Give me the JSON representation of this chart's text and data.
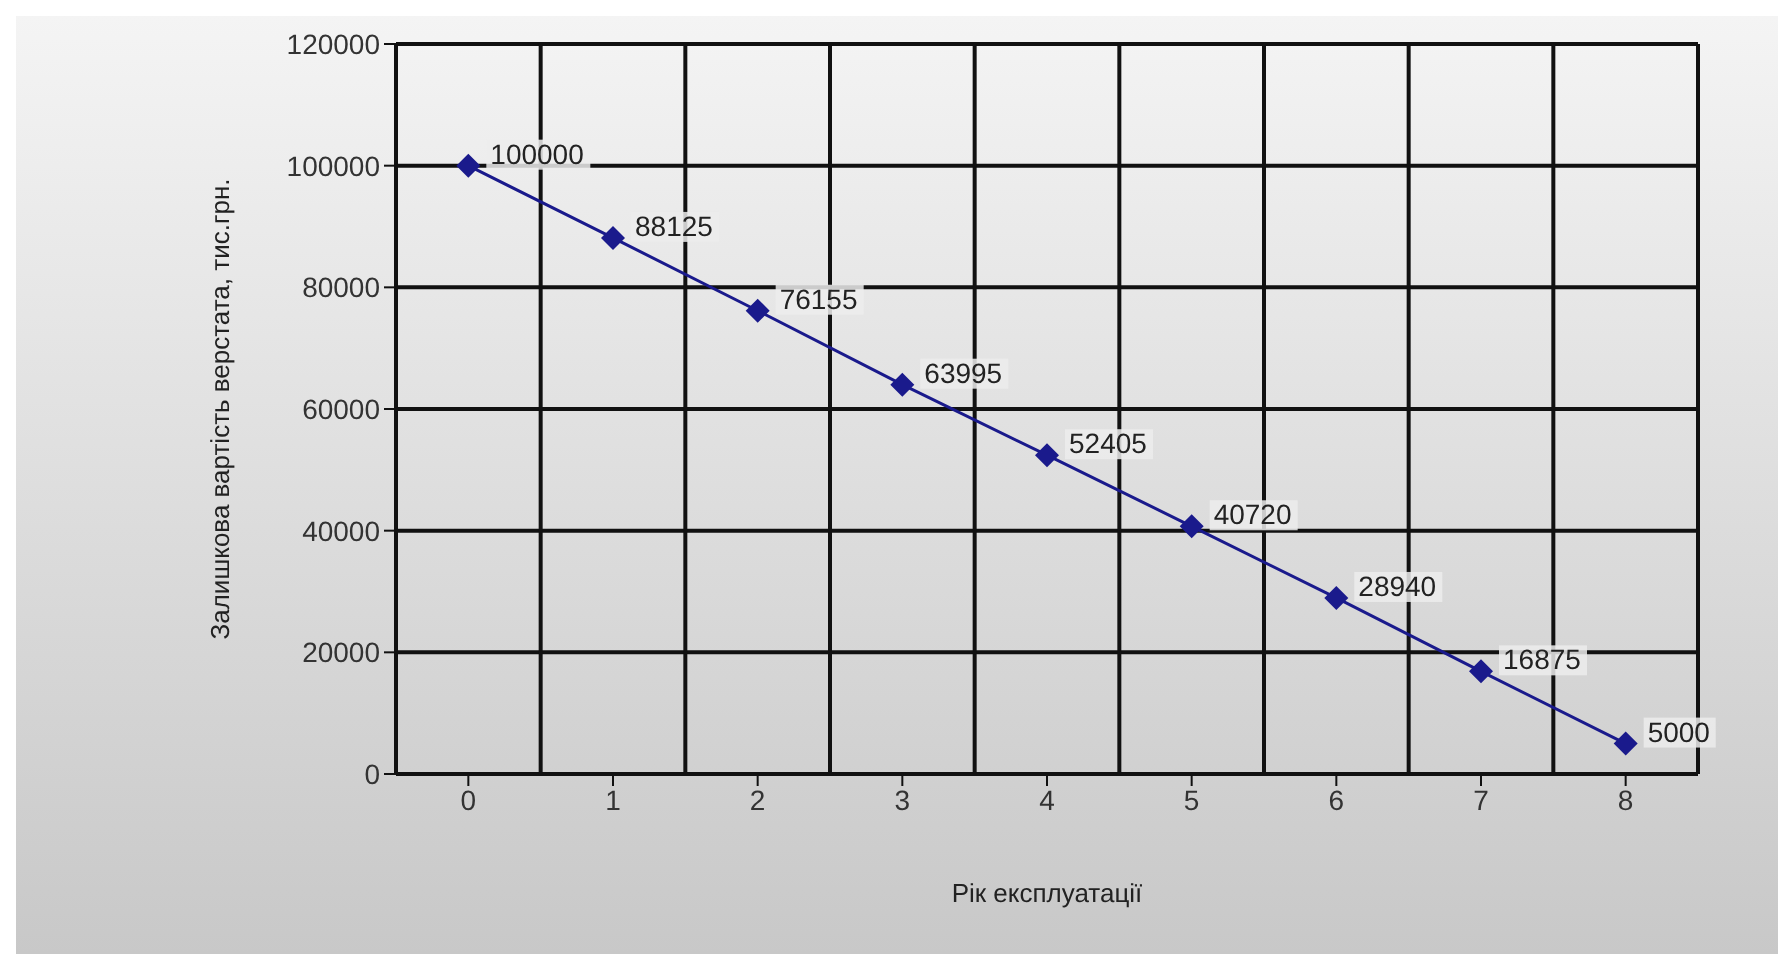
{
  "chart_data": {
    "type": "line",
    "xlabel": "Рік експлуатації",
    "ylabel": "Залишкова вартість верстата, тис.грн.",
    "categories": [
      "0",
      "1",
      "2",
      "3",
      "4",
      "5",
      "6",
      "7",
      "8"
    ],
    "series": [
      {
        "color": "#1a1a8c",
        "values": [
          100000,
          88125,
          76155,
          63995,
          52405,
          40720,
          28940,
          16875,
          5000
        ]
      }
    ],
    "ylim": [
      0,
      120000
    ],
    "yticks": [
      0,
      20000,
      40000,
      60000,
      80000,
      100000,
      120000
    ],
    "grid": true,
    "marker": "diamond",
    "data_labels": true,
    "line_style": "solid",
    "legend": false
  }
}
